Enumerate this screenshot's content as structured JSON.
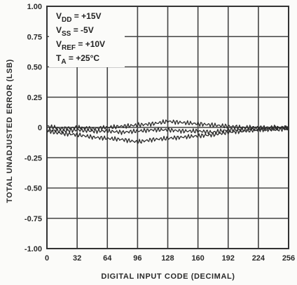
{
  "chart_data": {
    "type": "line",
    "xlabel": "DIGITAL INPUT CODE (DECIMAL)",
    "ylabel": "TOTAL UNADJUSTED ERROR (LSB)",
    "xlim": [
      0,
      256
    ],
    "ylim": [
      -1.0,
      1.0
    ],
    "x_ticks": [
      0,
      32,
      64,
      96,
      128,
      160,
      192,
      224,
      256
    ],
    "x_tick_labels": [
      "0",
      "32",
      "64",
      "96",
      "128",
      "160",
      "192",
      "224",
      "256"
    ],
    "y_ticks": [
      1.0,
      0.75,
      0.5,
      0.25,
      0,
      -0.25,
      -0.5,
      -0.75,
      -1.0
    ],
    "y_tick_labels": [
      "1.00",
      "0.75",
      "0.50",
      "0.25",
      "0",
      "-0.25",
      "-0.50",
      "-0.75",
      "-1.00"
    ],
    "grid": true,
    "conditions": [
      {
        "main": "V",
        "sub": "DD",
        "rest": " = +15V"
      },
      {
        "main": "V",
        "sub": "SS",
        "rest": " = -5V"
      },
      {
        "main": "V",
        "sub": "REF",
        "rest": " = +10V"
      },
      {
        "main": "T",
        "sub": "A",
        "rest": " = +25°C"
      }
    ],
    "series": [
      {
        "x": [
          0,
          16,
          32,
          48,
          64,
          80,
          96,
          112,
          128,
          144,
          160,
          176,
          192,
          208,
          224,
          240,
          256
        ],
        "values": [
          0.01,
          -0.01,
          0.0,
          -0.01,
          0.0,
          0.01,
          0.02,
          0.03,
          0.05,
          0.04,
          0.03,
          0.02,
          0.01,
          0.0,
          0.0,
          0.0,
          0.0
        ]
      },
      {
        "x": [
          0,
          16,
          32,
          48,
          64,
          80,
          96,
          112,
          128,
          144,
          160,
          176,
          192,
          208,
          224,
          240,
          256
        ],
        "values": [
          -0.02,
          -0.03,
          -0.02,
          -0.03,
          -0.03,
          -0.04,
          -0.03,
          -0.02,
          -0.02,
          -0.03,
          -0.03,
          -0.04,
          -0.02,
          -0.02,
          -0.01,
          -0.02,
          -0.01
        ]
      },
      {
        "x": [
          0,
          16,
          32,
          48,
          64,
          80,
          96,
          112,
          128,
          144,
          160,
          176,
          192,
          208,
          224,
          240,
          256
        ],
        "values": [
          -0.03,
          -0.05,
          -0.06,
          -0.08,
          -0.09,
          -0.1,
          -0.12,
          -0.1,
          -0.09,
          -0.08,
          -0.07,
          -0.06,
          -0.04,
          -0.03,
          -0.02,
          -0.01,
          0.0
        ]
      }
    ]
  }
}
